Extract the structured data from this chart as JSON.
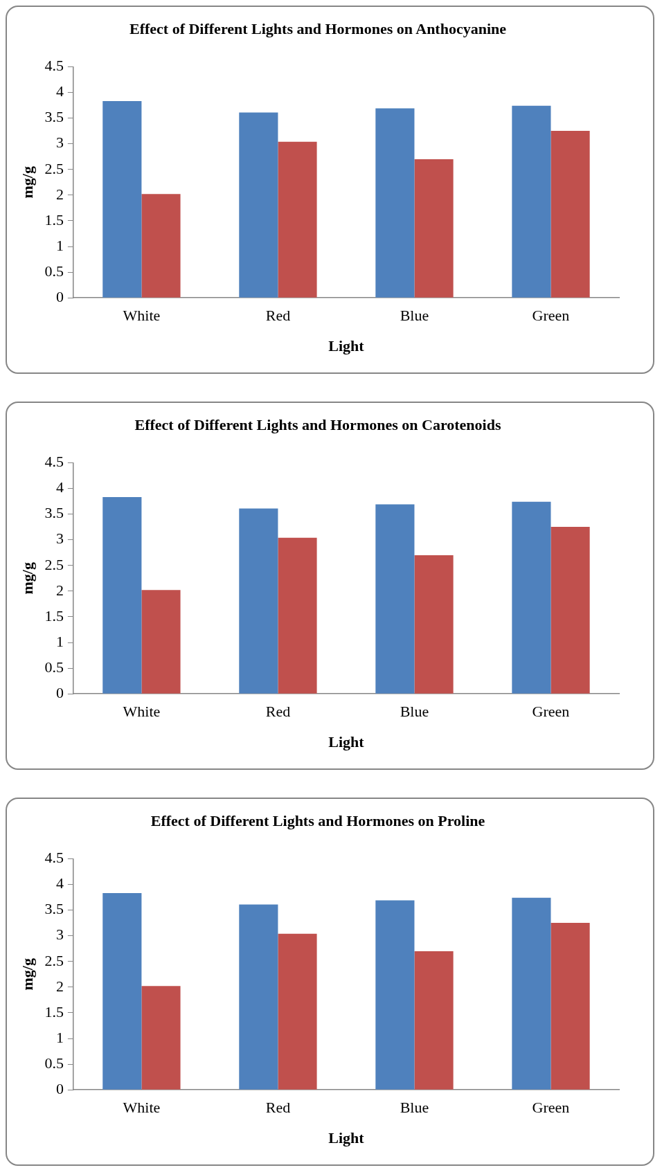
{
  "chart_data": [
    {
      "type": "bar",
      "title": "Effect of Different Lights and Hormones on Anthocyanine",
      "xlabel": "Light",
      "ylabel": "mg/g",
      "categories": [
        "White",
        "Red",
        "Blue",
        "Green"
      ],
      "series": [
        {
          "color": "#4f81bd",
          "values": [
            3.83,
            3.61,
            3.69,
            3.74
          ]
        },
        {
          "color": "#c0504d",
          "values": [
            2.02,
            3.04,
            2.7,
            3.25
          ]
        }
      ],
      "ylim": [
        0,
        4.5
      ],
      "yticks": [
        0,
        0.5,
        1,
        1.5,
        2,
        2.5,
        3,
        3.5,
        4,
        4.5
      ],
      "grid": false,
      "legend": false
    },
    {
      "type": "bar",
      "title": "Effect of Different Lights and Hormones on Carotenoids",
      "xlabel": "Light",
      "ylabel": "mg/g",
      "categories": [
        "White",
        "Red",
        "Blue",
        "Green"
      ],
      "series": [
        {
          "color": "#4f81bd",
          "values": [
            3.83,
            3.61,
            3.69,
            3.74
          ]
        },
        {
          "color": "#c0504d",
          "values": [
            2.02,
            3.04,
            2.7,
            3.25
          ]
        }
      ],
      "ylim": [
        0,
        4.5
      ],
      "yticks": [
        0,
        0.5,
        1,
        1.5,
        2,
        2.5,
        3,
        3.5,
        4,
        4.5
      ],
      "grid": false,
      "legend": false
    },
    {
      "type": "bar",
      "title": "Effect of Different Lights and Hormones on Proline",
      "xlabel": "Light",
      "ylabel": "mg/g",
      "categories": [
        "White",
        "Red",
        "Blue",
        "Green"
      ],
      "series": [
        {
          "color": "#4f81bd",
          "values": [
            3.83,
            3.61,
            3.69,
            3.74
          ]
        },
        {
          "color": "#c0504d",
          "values": [
            2.02,
            3.04,
            2.7,
            3.25
          ]
        }
      ],
      "ylim": [
        0,
        4.5
      ],
      "yticks": [
        0,
        0.5,
        1,
        1.5,
        2,
        2.5,
        3,
        3.5,
        4,
        4.5
      ],
      "grid": false,
      "legend": false
    }
  ]
}
